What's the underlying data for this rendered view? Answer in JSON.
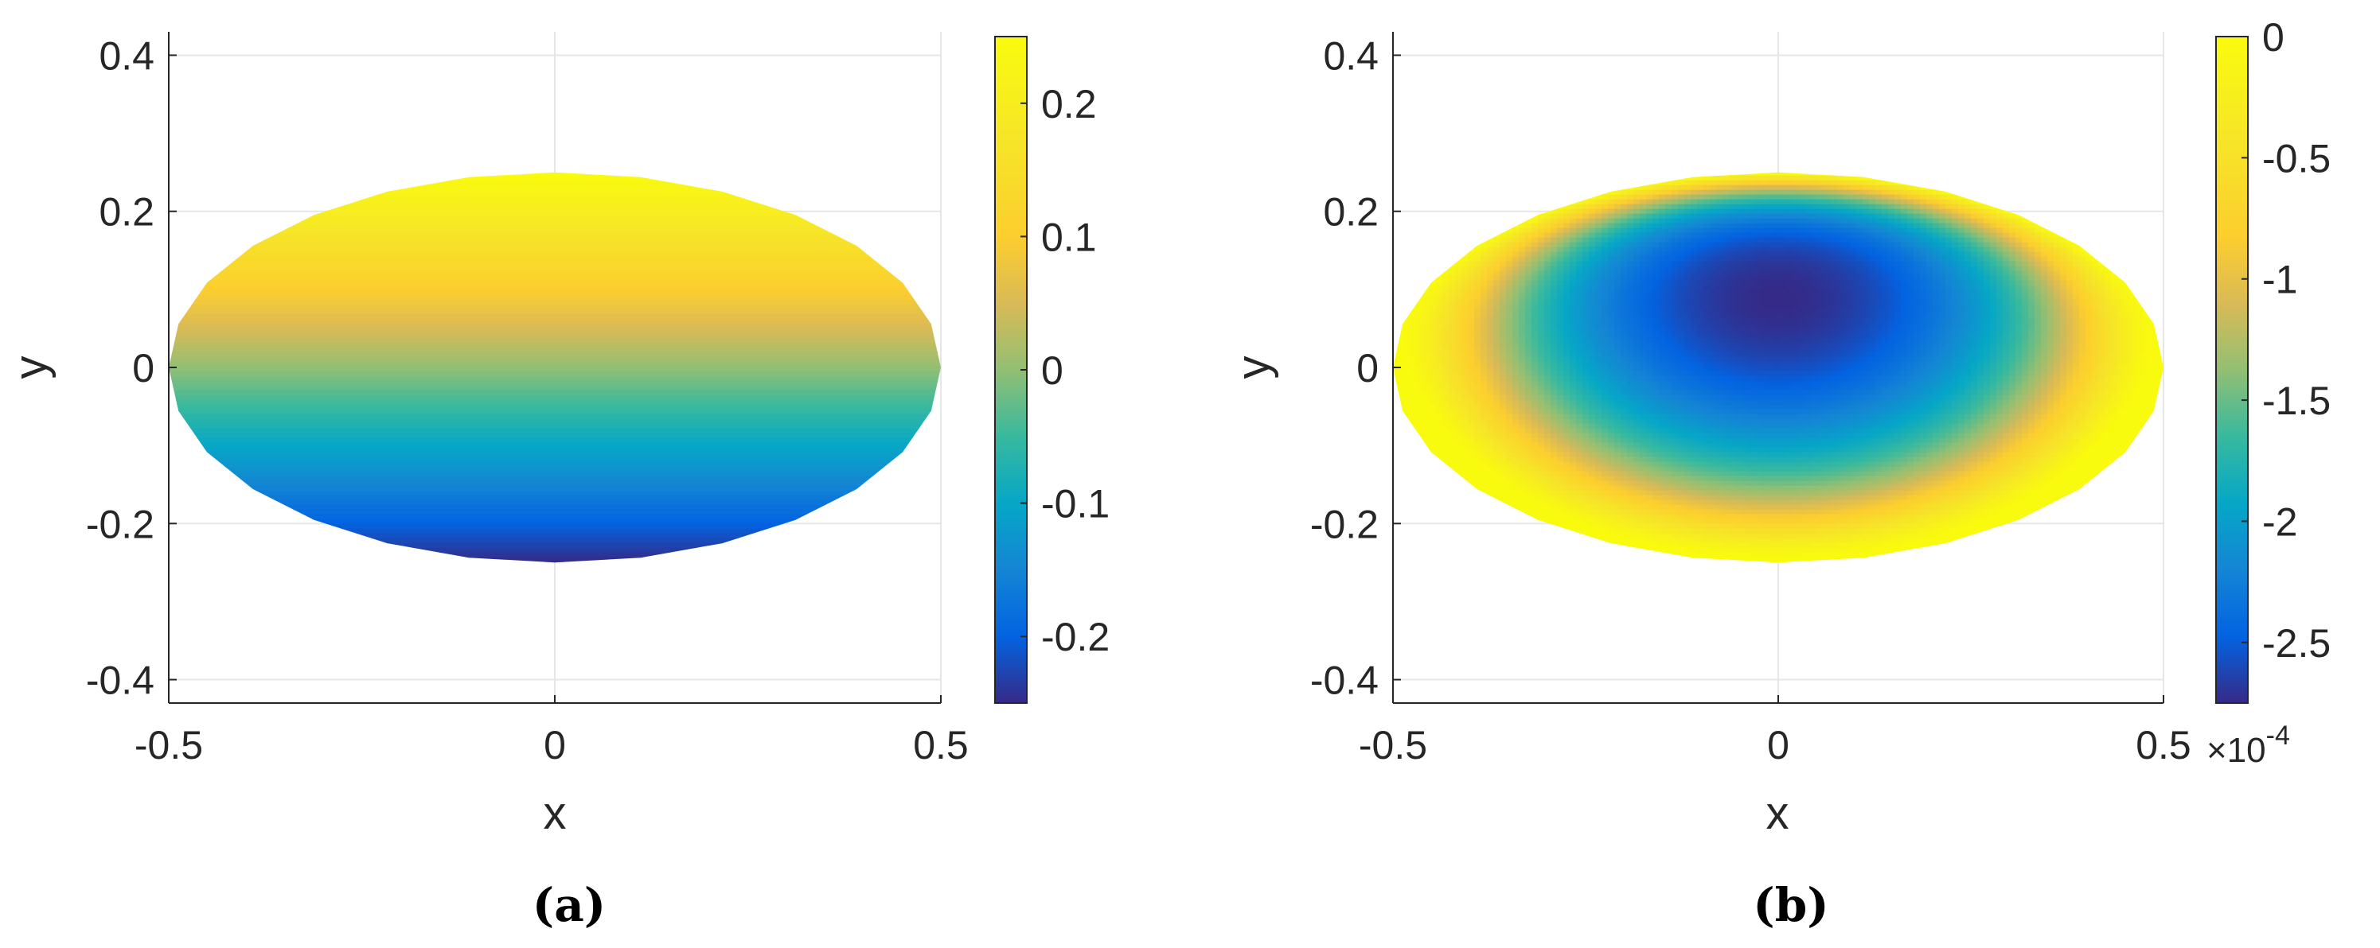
{
  "chart_data": [
    {
      "type": "heatmap",
      "panel_label": "(a)",
      "field": "linear in y",
      "xlabel": "x",
      "ylabel": "y",
      "xlim": [
        -0.5,
        0.5
      ],
      "ylim": [
        -0.43,
        0.43
      ],
      "x_ticks": [
        -0.5,
        0,
        0.5
      ],
      "x_tick_labels": [
        "-0.5",
        "0",
        "0.5"
      ],
      "y_ticks": [
        0.4,
        0.2,
        0,
        -0.2,
        -0.4
      ],
      "y_tick_labels": [
        "0.4",
        "0.2",
        "0",
        "-0.2",
        "-0.4"
      ],
      "grid": true,
      "domain": "ellipse (x/0.5)^2 + (y/0.25)^2 <= 1",
      "colormap": "parula",
      "clim": [
        -0.25,
        0.25
      ],
      "colorbar": {
        "ticks": [
          0.2,
          0.1,
          0,
          -0.1,
          -0.2
        ],
        "tick_labels": [
          "0.2",
          "0.1",
          "0",
          "-0.1",
          "-0.2"
        ],
        "exponent_label": ""
      }
    },
    {
      "type": "heatmap",
      "panel_label": "(b)",
      "field": "bowl-shaped error, min near (0, 0.09)",
      "xlabel": "x",
      "ylabel": "y",
      "xlim": [
        -0.5,
        0.5
      ],
      "ylim": [
        -0.43,
        0.43
      ],
      "x_ticks": [
        -0.5,
        0,
        0.5
      ],
      "x_tick_labels": [
        "-0.5",
        "0",
        "0.5"
      ],
      "y_ticks": [
        0.4,
        0.2,
        0,
        -0.2,
        -0.4
      ],
      "y_tick_labels": [
        "0.4",
        "0.2",
        "0",
        "-0.2",
        "-0.4"
      ],
      "grid": true,
      "domain": "ellipse (x/0.5)^2 + (y/0.25)^2 <= 1",
      "colormap": "parula",
      "clim": [
        -2.75,
        0
      ],
      "colorbar": {
        "ticks": [
          0,
          -0.5,
          -1,
          -1.5,
          -2,
          -2.5
        ],
        "tick_labels": [
          "0",
          "-0.5",
          "-1",
          "-1.5",
          "-2",
          "-2.5"
        ],
        "exponent_label": "×10",
        "exponent_power": "-4"
      }
    }
  ],
  "colors": {
    "parula_low": "#352a87",
    "parula_mid": "#14b8c6",
    "parula_high": "#f9fb0e",
    "axis": "#262626",
    "grid": "#e6e6e6"
  }
}
